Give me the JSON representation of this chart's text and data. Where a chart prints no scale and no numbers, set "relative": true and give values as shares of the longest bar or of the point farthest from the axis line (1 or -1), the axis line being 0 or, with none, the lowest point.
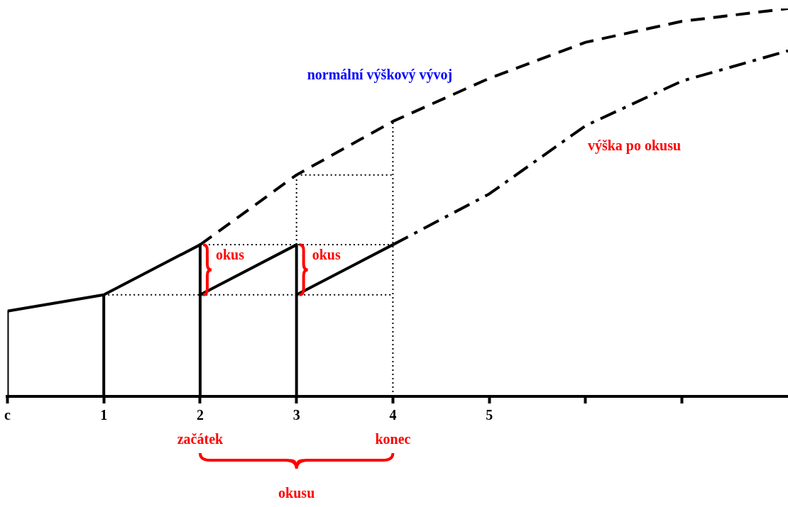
{
  "chart_data": {
    "type": "line",
    "relative": true,
    "grid": false,
    "tick_labels": "x",
    "xlim": [
      0,
      8.1
    ],
    "xticks": [
      {
        "value": 0,
        "label": "c"
      },
      1,
      2,
      3,
      4,
      5,
      {
        "value": 6,
        "label": null
      },
      {
        "value": 7,
        "label": null
      }
    ],
    "series": [
      {
        "color": "#000000",
        "line_style": "solid",
        "x": [
          0,
          1,
          2
        ],
        "values": [
          0.22,
          0.262,
          0.391
        ]
      },
      {
        "name": "normální výškový vývoj",
        "color": "#000000",
        "line_style": "dashed",
        "x": [
          2,
          3,
          4,
          5,
          6,
          7,
          8.1
        ],
        "values": [
          0.391,
          0.571,
          0.709,
          0.82,
          0.913,
          0.967,
          1
        ]
      },
      {
        "color": "#000000",
        "line_style": "solid",
        "x": [
          2,
          2,
          3,
          3,
          4
        ],
        "values": [
          0.391,
          0.262,
          0.391,
          0.262,
          0.391
        ]
      },
      {
        "name": "výška po okusu",
        "color": "#000000",
        "line_style": "dashdot",
        "x": [
          4,
          5,
          6,
          7,
          8.1
        ],
        "values": [
          0.391,
          0.522,
          0.698,
          0.813,
          0.891
        ]
      },
      {
        "color": "#000000",
        "line_style": "dotted",
        "x": [
          1,
          4
        ],
        "values": [
          0.262,
          0.262
        ]
      },
      {
        "color": "#000000",
        "line_style": "dotted",
        "x": [
          2,
          4
        ],
        "values": [
          0.391,
          0.391
        ]
      },
      {
        "color": "#000000",
        "line_style": "dotted",
        "x": [
          3,
          4
        ],
        "values": [
          0.571,
          0.571
        ]
      },
      {
        "color": "#000000",
        "line_style": "dotted",
        "x": [
          3,
          3
        ],
        "values": [
          0.391,
          0.571
        ]
      },
      {
        "color": "#000000",
        "line_style": "dotted",
        "x": [
          4,
          4
        ],
        "values": [
          0,
          0.709
        ]
      },
      {
        "color": "#000000",
        "line_style": "solid",
        "x": [
          0,
          0
        ],
        "values": [
          0,
          0.22
        ]
      },
      {
        "color": "#000000",
        "line_style": "solid",
        "x": [
          1,
          1
        ],
        "values": [
          0,
          0.262
        ]
      },
      {
        "color": "#000000",
        "line_style": "solid",
        "x": [
          2,
          2
        ],
        "values": [
          0,
          0.262
        ]
      },
      {
        "color": "#000000",
        "line_style": "solid",
        "x": [
          3,
          3
        ],
        "values": [
          0,
          0.262
        ]
      }
    ],
    "annotations": [
      "okus",
      "okus",
      "začátek",
      "konec",
      "okusu"
    ]
  }
}
